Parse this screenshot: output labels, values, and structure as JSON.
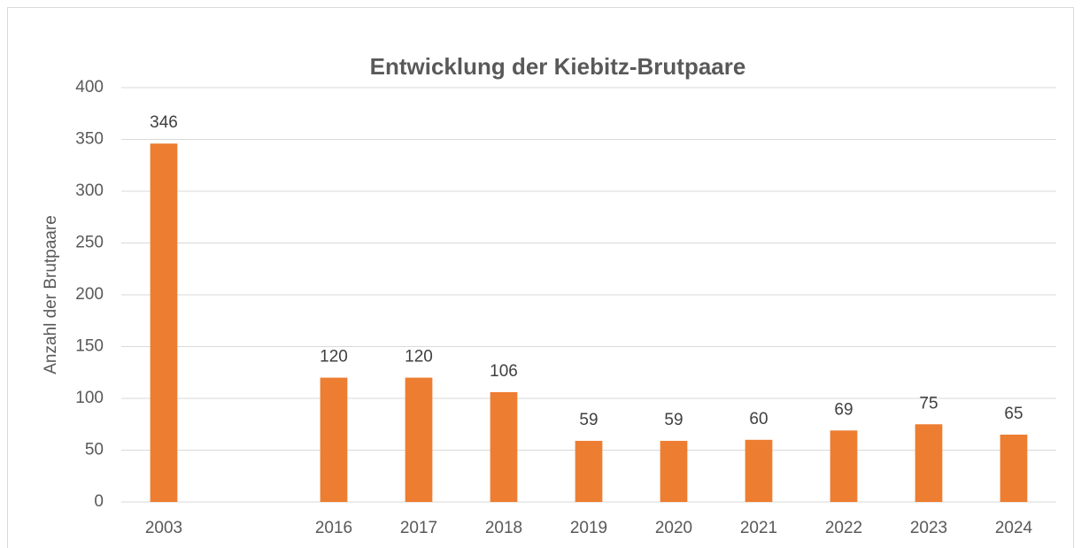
{
  "chart_data": {
    "type": "bar",
    "title": "Entwicklung der Kiebitz-Brutpaare",
    "y_label": "Anzahl der Brutpaare",
    "categories": [
      "2003",
      null,
      "2016",
      "2017",
      "2018",
      "2019",
      "2020",
      "2021",
      "2022",
      "2023",
      "2024"
    ],
    "values": [
      346,
      null,
      120,
      120,
      106,
      59,
      59,
      60,
      69,
      75,
      65
    ],
    "color": "#ed7d31",
    "ylim": [
      0,
      400
    ],
    "yticks": [
      0,
      50,
      100,
      150,
      200,
      250,
      300,
      350,
      400
    ],
    "grid": true
  }
}
